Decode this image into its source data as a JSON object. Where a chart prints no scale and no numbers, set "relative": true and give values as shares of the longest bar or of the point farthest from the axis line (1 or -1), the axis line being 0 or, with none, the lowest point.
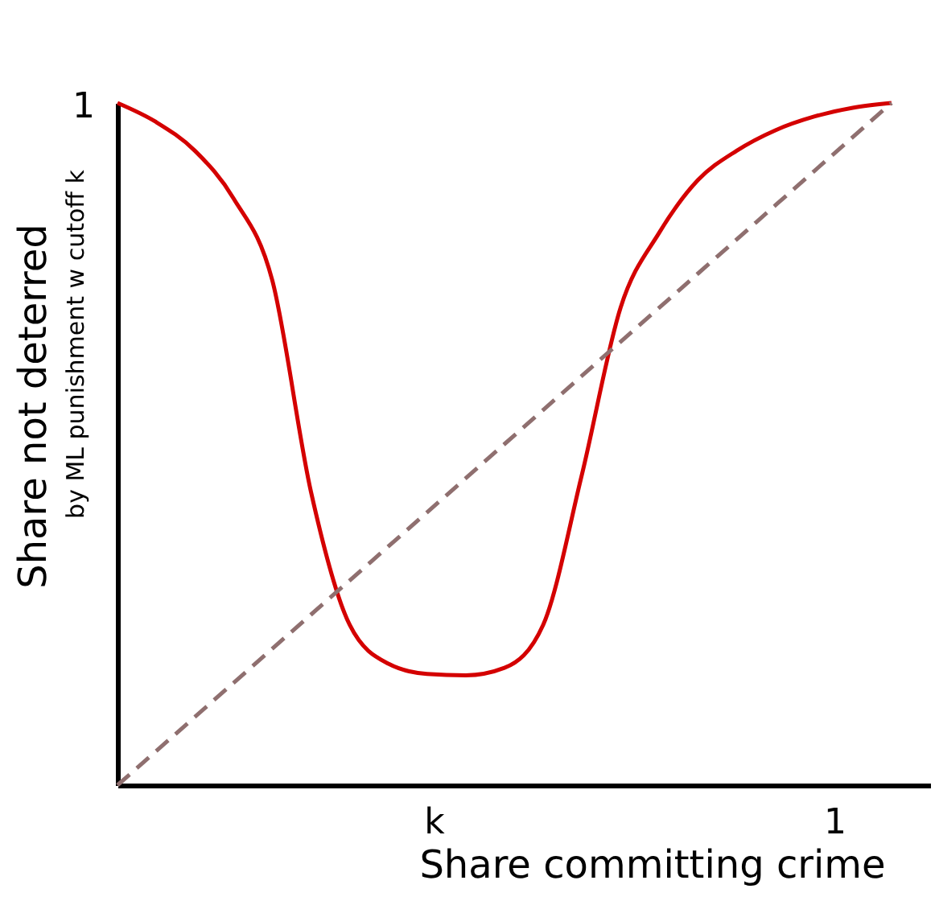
{
  "chart_data": {
    "type": "line",
    "relative": true,
    "xlabel": "Share committing crime",
    "ylabel": "Share not deterred",
    "annotations": [
      "by ML punishment w cutoff k",
      "1",
      "k",
      "1"
    ],
    "categories": [
      null,
      null,
      null,
      null,
      null,
      null,
      null,
      null,
      null,
      null,
      null,
      null,
      null,
      null,
      null,
      null,
      null,
      null,
      null,
      null,
      null
    ],
    "grid": false,
    "series": [
      {
        "color": "#d40000",
        "line_style": "solid",
        "values": [
          1,
          0.972,
          0.93,
          0.86,
          0.74,
          0.43,
          0.235,
          0.178,
          0.163,
          0.161,
          0.172,
          0.235,
          0.455,
          0.7,
          0.81,
          0.887,
          0.93,
          0.96,
          0.98,
          0.993,
          1
        ]
      },
      {
        "color": "#8f6f6f",
        "line_style": "dashed",
        "values": [
          0,
          0.05,
          0.1,
          0.15,
          0.2,
          0.25,
          0.3,
          0.35,
          0.4,
          0.45,
          0.5,
          0.55,
          0.6,
          0.65,
          0.7,
          0.75,
          0.8,
          0.85,
          0.9,
          0.95,
          1
        ]
      }
    ]
  }
}
